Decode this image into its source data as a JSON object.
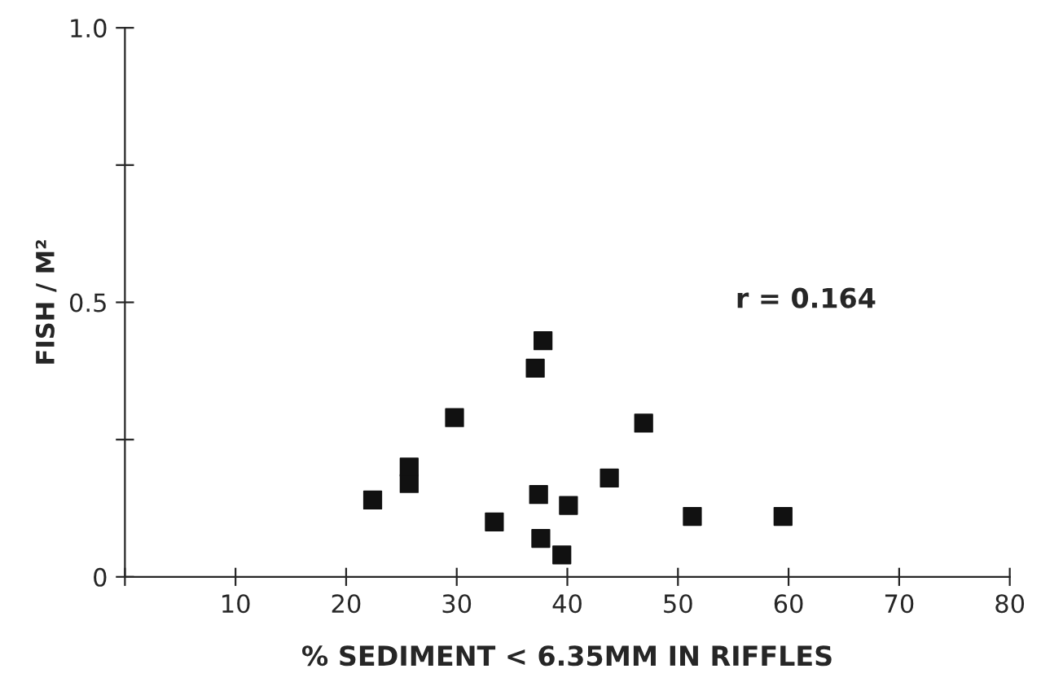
{
  "chart_data": {
    "type": "scatter",
    "xlabel": "% SEDIMENT < 6.35MM IN RIFFLES",
    "ylabel": "FISH / M²",
    "x": [
      22.4,
      25.7,
      25.7,
      29.8,
      33.4,
      37.1,
      37.8,
      37.4,
      37.6,
      39.5,
      40.1,
      43.8,
      46.9,
      51.3,
      59.5
    ],
    "values": [
      0.14,
      0.2,
      0.17,
      0.29,
      0.1,
      0.38,
      0.43,
      0.15,
      0.07,
      0.04,
      0.13,
      0.18,
      0.28,
      0.11,
      0.11
    ],
    "color": "#111111",
    "marker": "square",
    "xlim": [
      0,
      80
    ],
    "ylim": [
      0,
      1.0
    ],
    "xticks": [
      {
        "value": 0,
        "label": null
      },
      10,
      20,
      30,
      40,
      50,
      60,
      70,
      80
    ],
    "yticks": [
      0,
      {
        "value": 0.25,
        "label": null
      },
      0.5,
      {
        "value": 0.75,
        "label": null
      },
      {
        "value": 1.0,
        "label": "1.0"
      }
    ],
    "annotations": [
      "r = 0.164"
    ],
    "grid": false
  }
}
